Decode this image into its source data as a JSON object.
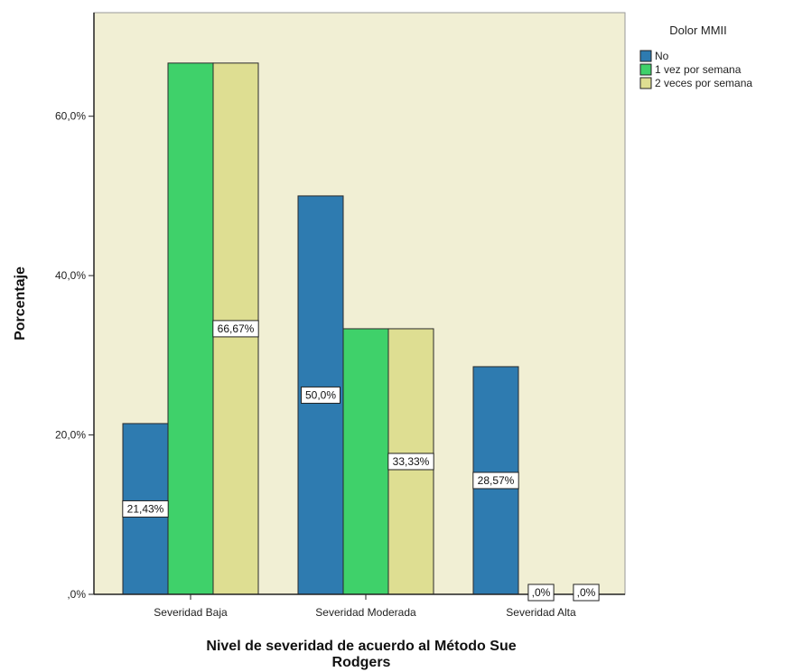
{
  "chart_data": {
    "type": "bar",
    "categories": [
      "Severidad Baja",
      "Severidad Moderada",
      "Severidad Alta"
    ],
    "series": [
      {
        "name": "No",
        "color": "#2e7bb0",
        "values": [
          21.43,
          50.0,
          28.57
        ],
        "labels": [
          "21,43%",
          "50,0%",
          "28,57%"
        ]
      },
      {
        "name": "1 vez por semana",
        "color": "#3fd16a",
        "values": [
          66.67,
          33.33,
          0
        ],
        "labels": [
          "",
          "",
          ",0%"
        ]
      },
      {
        "name": "2 veces por semana",
        "color": "#dede92",
        "values": [
          66.67,
          33.33,
          0
        ],
        "labels": [
          "66,67%",
          "33,33%",
          ",0%"
        ]
      }
    ],
    "yticks": [
      0,
      20,
      40,
      60
    ],
    "ytick_labels": [
      ",0%",
      "20,0%",
      "40,0%",
      "60,0%"
    ],
    "ylim": [
      0,
      73
    ],
    "xlabel": "Nivel de severidad de acuerdo al Método Sue Rodgers",
    "ylabel": "Porcentaje",
    "legend_title": "Dolor MMII",
    "legend_position": "top-right",
    "plot_background": "#f1efd4",
    "grid": false
  }
}
